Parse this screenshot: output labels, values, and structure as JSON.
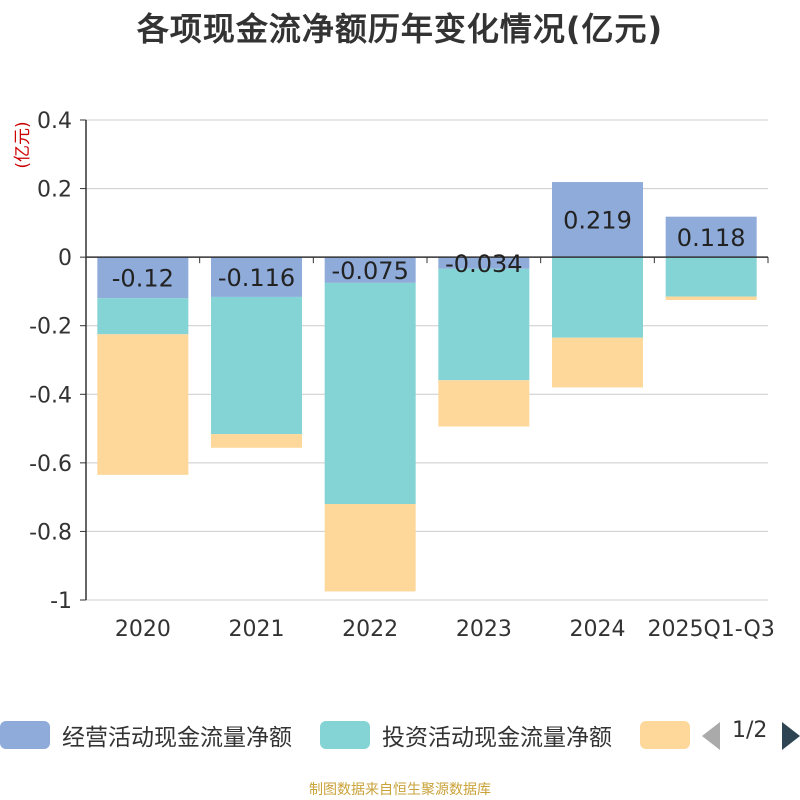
{
  "title": "各项现金流净额历年变化情况(亿元)",
  "footer": "制图数据来自恒生聚源数据库",
  "legend": {
    "items": [
      {
        "label": "经营活动现金流量净额",
        "color": "#8eabd9"
      },
      {
        "label": "投资活动现金流量净额",
        "color": "#84d3d5"
      },
      {
        "label": "",
        "color": "#fdd89a"
      }
    ],
    "page_indicator": "1/2"
  },
  "chart_data": {
    "type": "bar",
    "stacked": true,
    "title": "各项现金流净额历年变化情况(亿元)",
    "ylabel": "(亿元)",
    "ylim": [
      -1,
      0.4
    ],
    "yticks": [
      0.4,
      0.2,
      0,
      -0.2,
      -0.4,
      -0.6,
      -0.8,
      -1
    ],
    "ytick_labels": [
      "0.4",
      "0.2",
      "0",
      "-0.2",
      "-0.4",
      "-0.6",
      "-0.8",
      "-1"
    ],
    "categories": [
      "2020",
      "2021",
      "2022",
      "2023",
      "2024",
      "2025Q1-Q3"
    ],
    "series": [
      {
        "name": "经营活动现金流量净额",
        "color": "#8eabd9",
        "values": [
          -0.12,
          -0.116,
          -0.075,
          -0.034,
          0.219,
          0.118
        ],
        "labels": [
          "-0.12",
          "-0.116",
          "-0.075",
          "-0.034",
          "0.219",
          "0.118"
        ]
      },
      {
        "name": "投资活动现金流量净额",
        "color": "#84d3d5",
        "values": [
          -0.105,
          -0.4,
          -0.645,
          -0.325,
          -0.235,
          -0.115
        ]
      },
      {
        "name": "",
        "color": "#fdd89a",
        "values": [
          -0.41,
          -0.04,
          -0.255,
          -0.135,
          -0.145,
          -0.01
        ]
      }
    ],
    "grid": true
  }
}
